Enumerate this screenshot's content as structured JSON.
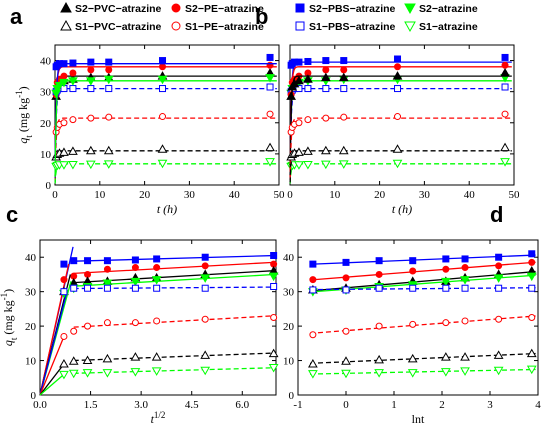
{
  "colors": {
    "black": "#000000",
    "red": "#ff0000",
    "blue": "#0000ff",
    "green": "#00ff00"
  },
  "chart_data": [
    {
      "panel": "a",
      "type": "scatter",
      "xlabel": "t (h)",
      "ylabel": "q_t (mg kg^-1)",
      "xlim": [
        0,
        50
      ],
      "ylim": [
        0,
        45
      ],
      "xticks": [
        "0",
        "10",
        "20",
        "30",
        "40",
        "50"
      ],
      "yticks": [
        "0",
        "10",
        "20",
        "30",
        "40"
      ],
      "grid": false,
      "legend_position": "top",
      "series": [
        {
          "name": "S2−PVC−atrazine",
          "color": "#000000",
          "marker": "triangle-up",
          "filled": true,
          "line": "solid",
          "fit": 35,
          "x": [
            0.25,
            0.5,
            1,
            2,
            4,
            8,
            12,
            24,
            48
          ],
          "y": [
            28.5,
            31.5,
            32.5,
            33.5,
            34,
            34.5,
            34.5,
            35,
            36
          ]
        },
        {
          "name": "S2−PE−atrazine",
          "color": "#ff0000",
          "marker": "circle",
          "filled": true,
          "line": "solid",
          "fit": 38,
          "x": [
            0.25,
            0.5,
            1,
            2,
            4,
            8,
            12,
            24,
            48
          ],
          "y": [
            29,
            33,
            34,
            35,
            36,
            37,
            37,
            38,
            38.5
          ]
        },
        {
          "name": "S1−PVC−atrazine",
          "color": "#000000",
          "marker": "triangle-up",
          "filled": false,
          "line": "dash",
          "fit": 11,
          "x": [
            0.25,
            0.5,
            1,
            2,
            4,
            8,
            12,
            24,
            48
          ],
          "y": [
            9,
            9.8,
            10.2,
            10.5,
            10.8,
            11,
            11,
            11.5,
            12
          ]
        },
        {
          "name": "S1−PE−atrazine",
          "color": "#ff0000",
          "marker": "circle",
          "filled": false,
          "line": "dash",
          "fit": 21.5,
          "x": [
            0.25,
            0.5,
            1,
            2,
            4,
            8,
            12,
            24,
            48
          ],
          "y": [
            17,
            18.5,
            19.5,
            20,
            21,
            21.5,
            21.8,
            22,
            22.8
          ]
        },
        {
          "name": "",
          "color": "#0000ff",
          "marker": "square",
          "filled": true,
          "line": "solid",
          "fit": 39,
          "x": [
            0.25,
            0.5,
            1,
            2,
            4,
            8,
            12,
            24,
            48
          ],
          "y": [
            38,
            38.5,
            39,
            39,
            39.2,
            39.5,
            39.5,
            40,
            41
          ]
        },
        {
          "name": "",
          "color": "#0000ff",
          "marker": "square",
          "filled": false,
          "line": "dash",
          "fit": 31,
          "x": [
            0.25,
            0.5,
            1,
            2,
            4,
            8,
            12,
            24,
            48
          ],
          "y": [
            30,
            30.5,
            31,
            31,
            31,
            31,
            31,
            31,
            31.5
          ]
        },
        {
          "name": "",
          "color": "#00ff00",
          "marker": "triangle-down",
          "filled": true,
          "line": "solid",
          "fit": 33.5,
          "x": [
            0.25,
            0.5,
            1,
            2,
            4,
            8,
            12,
            24,
            48
          ],
          "y": [
            29.5,
            31,
            32,
            33,
            33.5,
            33.5,
            34,
            34,
            34.5
          ]
        },
        {
          "name": "",
          "color": "#00ff00",
          "marker": "triangle-down",
          "filled": false,
          "line": "dash",
          "fit": 6.8,
          "x": [
            0.25,
            0.5,
            1,
            2,
            4,
            8,
            12,
            24,
            48
          ],
          "y": [
            6,
            6.3,
            6.5,
            6.5,
            6.6,
            6.7,
            6.8,
            7,
            7.5
          ]
        }
      ]
    },
    {
      "panel": "b",
      "type": "scatter",
      "xlabel": "t (h)",
      "ylabel": "",
      "xlim": [
        0,
        50
      ],
      "ylim": [
        0,
        45
      ],
      "xticks": [
        "0",
        "10",
        "20",
        "30",
        "40",
        "50"
      ],
      "yticks": [],
      "grid": false,
      "legend_position": "top",
      "series": [
        {
          "name": "S2−PBS−atrazine",
          "color": "#0000ff",
          "marker": "square",
          "filled": true,
          "line": "solid",
          "fit": 39.5,
          "x": [
            0.25,
            0.5,
            1,
            2,
            4,
            8,
            12,
            24,
            48
          ],
          "y": [
            38.5,
            39,
            39.5,
            39.5,
            39.7,
            40,
            40,
            40.5,
            41
          ]
        },
        {
          "name": "S2−atrazine",
          "color": "#00ff00",
          "marker": "triangle-down",
          "filled": true,
          "line": "solid",
          "fit": 33.5,
          "x": [
            0.25,
            0.5,
            1,
            2,
            4,
            8,
            12,
            24,
            48
          ],
          "y": [
            29.5,
            31,
            32,
            33,
            33.5,
            33.5,
            34,
            34,
            34.5
          ]
        },
        {
          "name": "S1−PBS−atrazine",
          "color": "#0000ff",
          "marker": "square",
          "filled": false,
          "line": "dash",
          "fit": 31,
          "x": [
            0.25,
            0.5,
            1,
            2,
            4,
            8,
            12,
            24,
            48
          ],
          "y": [
            30,
            30.5,
            31,
            31,
            31,
            31,
            31,
            31,
            31.5
          ]
        },
        {
          "name": "S1−atrazine",
          "color": "#00ff00",
          "marker": "triangle-down",
          "filled": false,
          "line": "dash",
          "fit": 6.8,
          "x": [
            0.25,
            0.5,
            1,
            2,
            4,
            8,
            12,
            24,
            48
          ],
          "y": [
            6,
            6.3,
            6.5,
            6.5,
            6.6,
            6.7,
            6.8,
            7,
            7.5
          ]
        },
        {
          "name": "",
          "color": "#ff0000",
          "marker": "circle",
          "filled": true,
          "line": "solid",
          "fit": 38,
          "x": [
            0.25,
            0.5,
            1,
            2,
            4,
            8,
            12,
            24,
            48
          ],
          "y": [
            29,
            33,
            34,
            35,
            36,
            37,
            37,
            38,
            38.5
          ]
        },
        {
          "name": "",
          "color": "#000000",
          "marker": "triangle-up",
          "filled": true,
          "line": "solid",
          "fit": 35,
          "x": [
            0.25,
            0.5,
            1,
            2,
            4,
            8,
            12,
            24,
            48
          ],
          "y": [
            28.5,
            31.5,
            32.5,
            33.5,
            34,
            34.5,
            34.5,
            35,
            36
          ]
        },
        {
          "name": "",
          "color": "#ff0000",
          "marker": "circle",
          "filled": false,
          "line": "dash",
          "fit": 21.5,
          "x": [
            0.25,
            0.5,
            1,
            2,
            4,
            8,
            12,
            24,
            48
          ],
          "y": [
            17,
            18.5,
            19.5,
            20,
            21,
            21.5,
            21.8,
            22,
            22.8
          ]
        },
        {
          "name": "",
          "color": "#000000",
          "marker": "triangle-up",
          "filled": false,
          "line": "dash",
          "fit": 11,
          "x": [
            0.25,
            0.5,
            1,
            2,
            4,
            8,
            12,
            24,
            48
          ],
          "y": [
            9,
            9.8,
            10.2,
            10.5,
            10.8,
            11,
            11,
            11.5,
            12
          ]
        }
      ]
    },
    {
      "panel": "c",
      "type": "scatter",
      "xlabel": "t^1/2",
      "ylabel": "q_t (mg kg^-1)",
      "xlim": [
        0,
        7
      ],
      "ylim": [
        0,
        45
      ],
      "xticks": [
        "0.0",
        "1.5",
        "3.0",
        "4.5",
        "6.0"
      ],
      "yticks": [
        "0",
        "10",
        "20",
        "30",
        "40"
      ],
      "grid": false,
      "legend_position": "none",
      "series": [
        {
          "name": "",
          "color": "#0000ff",
          "marker": "square",
          "filled": true,
          "line": "solid",
          "x": [
            0.71,
            1,
            1.41,
            2,
            2.83,
            3.46,
            4.9,
            6.93
          ],
          "y": [
            38,
            39,
            39,
            39,
            39.2,
            39.5,
            40,
            40.5
          ],
          "origin_to": [
            0.98,
            43
          ]
        },
        {
          "name": "",
          "color": "#ff0000",
          "marker": "circle",
          "filled": true,
          "line": "solid",
          "x": [
            0.71,
            1,
            1.41,
            2,
            2.83,
            3.46,
            4.9,
            6.93
          ],
          "y": [
            33.5,
            34.5,
            35,
            36.5,
            37,
            37,
            37.5,
            38
          ],
          "origin_to": [
            0.85,
            38
          ]
        },
        {
          "name": "",
          "color": "#000000",
          "marker": "triangle-up",
          "filled": true,
          "line": "solid",
          "x": [
            0.71,
            1,
            1.41,
            2,
            2.83,
            3.46,
            4.9,
            6.93
          ],
          "y": [
            30,
            32.5,
            33,
            33,
            34,
            34,
            35,
            36
          ],
          "origin_to": [
            0.9,
            35
          ]
        },
        {
          "name": "",
          "color": "#00ff00",
          "marker": "triangle-down",
          "filled": true,
          "line": "solid",
          "x": [
            0.71,
            1,
            1.41,
            2,
            2.83,
            3.46,
            4.9,
            6.93
          ],
          "y": [
            29.5,
            31,
            31.5,
            32.5,
            33,
            33.5,
            34,
            34.5
          ],
          "origin_to": [
            0.92,
            33
          ]
        },
        {
          "name": "",
          "color": "#0000ff",
          "marker": "square",
          "filled": false,
          "line": "dash",
          "x": [
            0.71,
            1,
            1.41,
            2,
            2.83,
            3.46,
            4.9,
            6.93
          ],
          "y": [
            30,
            31,
            31,
            31,
            31,
            31,
            31,
            31.5
          ],
          "origin_to": [
            0.8,
            30
          ]
        },
        {
          "name": "",
          "color": "#ff0000",
          "marker": "circle",
          "filled": false,
          "line": "dash",
          "x": [
            0.71,
            1,
            1.41,
            2,
            2.83,
            3.46,
            4.9,
            6.93
          ],
          "y": [
            17,
            18.5,
            20,
            21,
            21,
            21.5,
            22,
            22.5
          ],
          "origin_to": [
            0.71,
            17
          ]
        },
        {
          "name": "",
          "color": "#000000",
          "marker": "triangle-up",
          "filled": false,
          "line": "dash",
          "x": [
            0.71,
            1,
            1.41,
            2,
            2.83,
            3.46,
            4.9,
            6.93
          ],
          "y": [
            9,
            9.8,
            10,
            10.5,
            11,
            11,
            11.5,
            12
          ],
          "origin_to": [
            0.71,
            9
          ]
        },
        {
          "name": "",
          "color": "#00ff00",
          "marker": "triangle-down",
          "filled": false,
          "line": "dash",
          "x": [
            0.71,
            1,
            1.41,
            2,
            2.83,
            3.46,
            4.9,
            6.93
          ],
          "y": [
            6,
            6.3,
            6.5,
            6.5,
            6.8,
            7,
            7.2,
            8
          ],
          "origin_to": [
            0.71,
            6
          ]
        }
      ]
    },
    {
      "panel": "d",
      "type": "scatter",
      "xlabel": "lnt",
      "ylabel": "",
      "xlim": [
        -1,
        4
      ],
      "ylim": [
        0,
        45
      ],
      "xticks": [
        "-1",
        "0",
        "1",
        "2",
        "3",
        "4"
      ],
      "yticks": [
        "0",
        "10",
        "20",
        "30",
        "40"
      ],
      "grid": false,
      "legend_position": "none",
      "series": [
        {
          "name": "",
          "color": "#0000ff",
          "marker": "square",
          "filled": true,
          "line": "solid",
          "x": [
            -0.69,
            0,
            0.69,
            1.39,
            2.08,
            2.48,
            3.18,
            3.87
          ],
          "y": [
            38,
            38.5,
            39,
            39,
            39.5,
            39.5,
            40,
            41
          ]
        },
        {
          "name": "",
          "color": "#ff0000",
          "marker": "circle",
          "filled": true,
          "line": "solid",
          "x": [
            -0.69,
            0,
            0.69,
            1.39,
            2.08,
            2.48,
            3.18,
            3.87
          ],
          "y": [
            33.5,
            34,
            35,
            36,
            36.5,
            37,
            37.5,
            38.5
          ]
        },
        {
          "name": "",
          "color": "#000000",
          "marker": "triangle-up",
          "filled": true,
          "line": "solid",
          "x": [
            -0.69,
            0,
            0.69,
            1.39,
            2.08,
            2.48,
            3.18,
            3.87
          ],
          "y": [
            30.5,
            31,
            32,
            33,
            33,
            34,
            35,
            36
          ]
        },
        {
          "name": "",
          "color": "#00ff00",
          "marker": "triangle-down",
          "filled": true,
          "line": "solid",
          "x": [
            -0.69,
            0,
            0.69,
            1.39,
            2.08,
            2.48,
            3.18,
            3.87
          ],
          "y": [
            30,
            30.5,
            31.5,
            32,
            33,
            33.5,
            34,
            34.5
          ]
        },
        {
          "name": "",
          "color": "#0000ff",
          "marker": "square",
          "filled": false,
          "line": "dash",
          "x": [
            -0.69,
            0,
            0.69,
            1.39,
            2.08,
            2.48,
            3.18,
            3.87
          ],
          "y": [
            30.5,
            30.5,
            31,
            31,
            31,
            31,
            31,
            31
          ]
        },
        {
          "name": "",
          "color": "#ff0000",
          "marker": "circle",
          "filled": false,
          "line": "dash",
          "x": [
            -0.69,
            0,
            0.69,
            1.39,
            2.08,
            2.48,
            3.18,
            3.87
          ],
          "y": [
            17.5,
            18.5,
            20,
            20.5,
            21,
            21.5,
            22,
            22.5
          ]
        },
        {
          "name": "",
          "color": "#000000",
          "marker": "triangle-up",
          "filled": false,
          "line": "dash",
          "x": [
            -0.69,
            0,
            0.69,
            1.39,
            2.08,
            2.48,
            3.18,
            3.87
          ],
          "y": [
            9,
            9.8,
            10.2,
            10.5,
            11,
            11,
            11.5,
            12
          ]
        },
        {
          "name": "",
          "color": "#00ff00",
          "marker": "triangle-down",
          "filled": false,
          "line": "dash",
          "x": [
            -0.69,
            0,
            0.69,
            1.39,
            2.08,
            2.48,
            3.18,
            3.87
          ],
          "y": [
            6.2,
            6.3,
            6.5,
            6.5,
            6.8,
            7,
            7.2,
            7.5
          ]
        }
      ]
    }
  ]
}
